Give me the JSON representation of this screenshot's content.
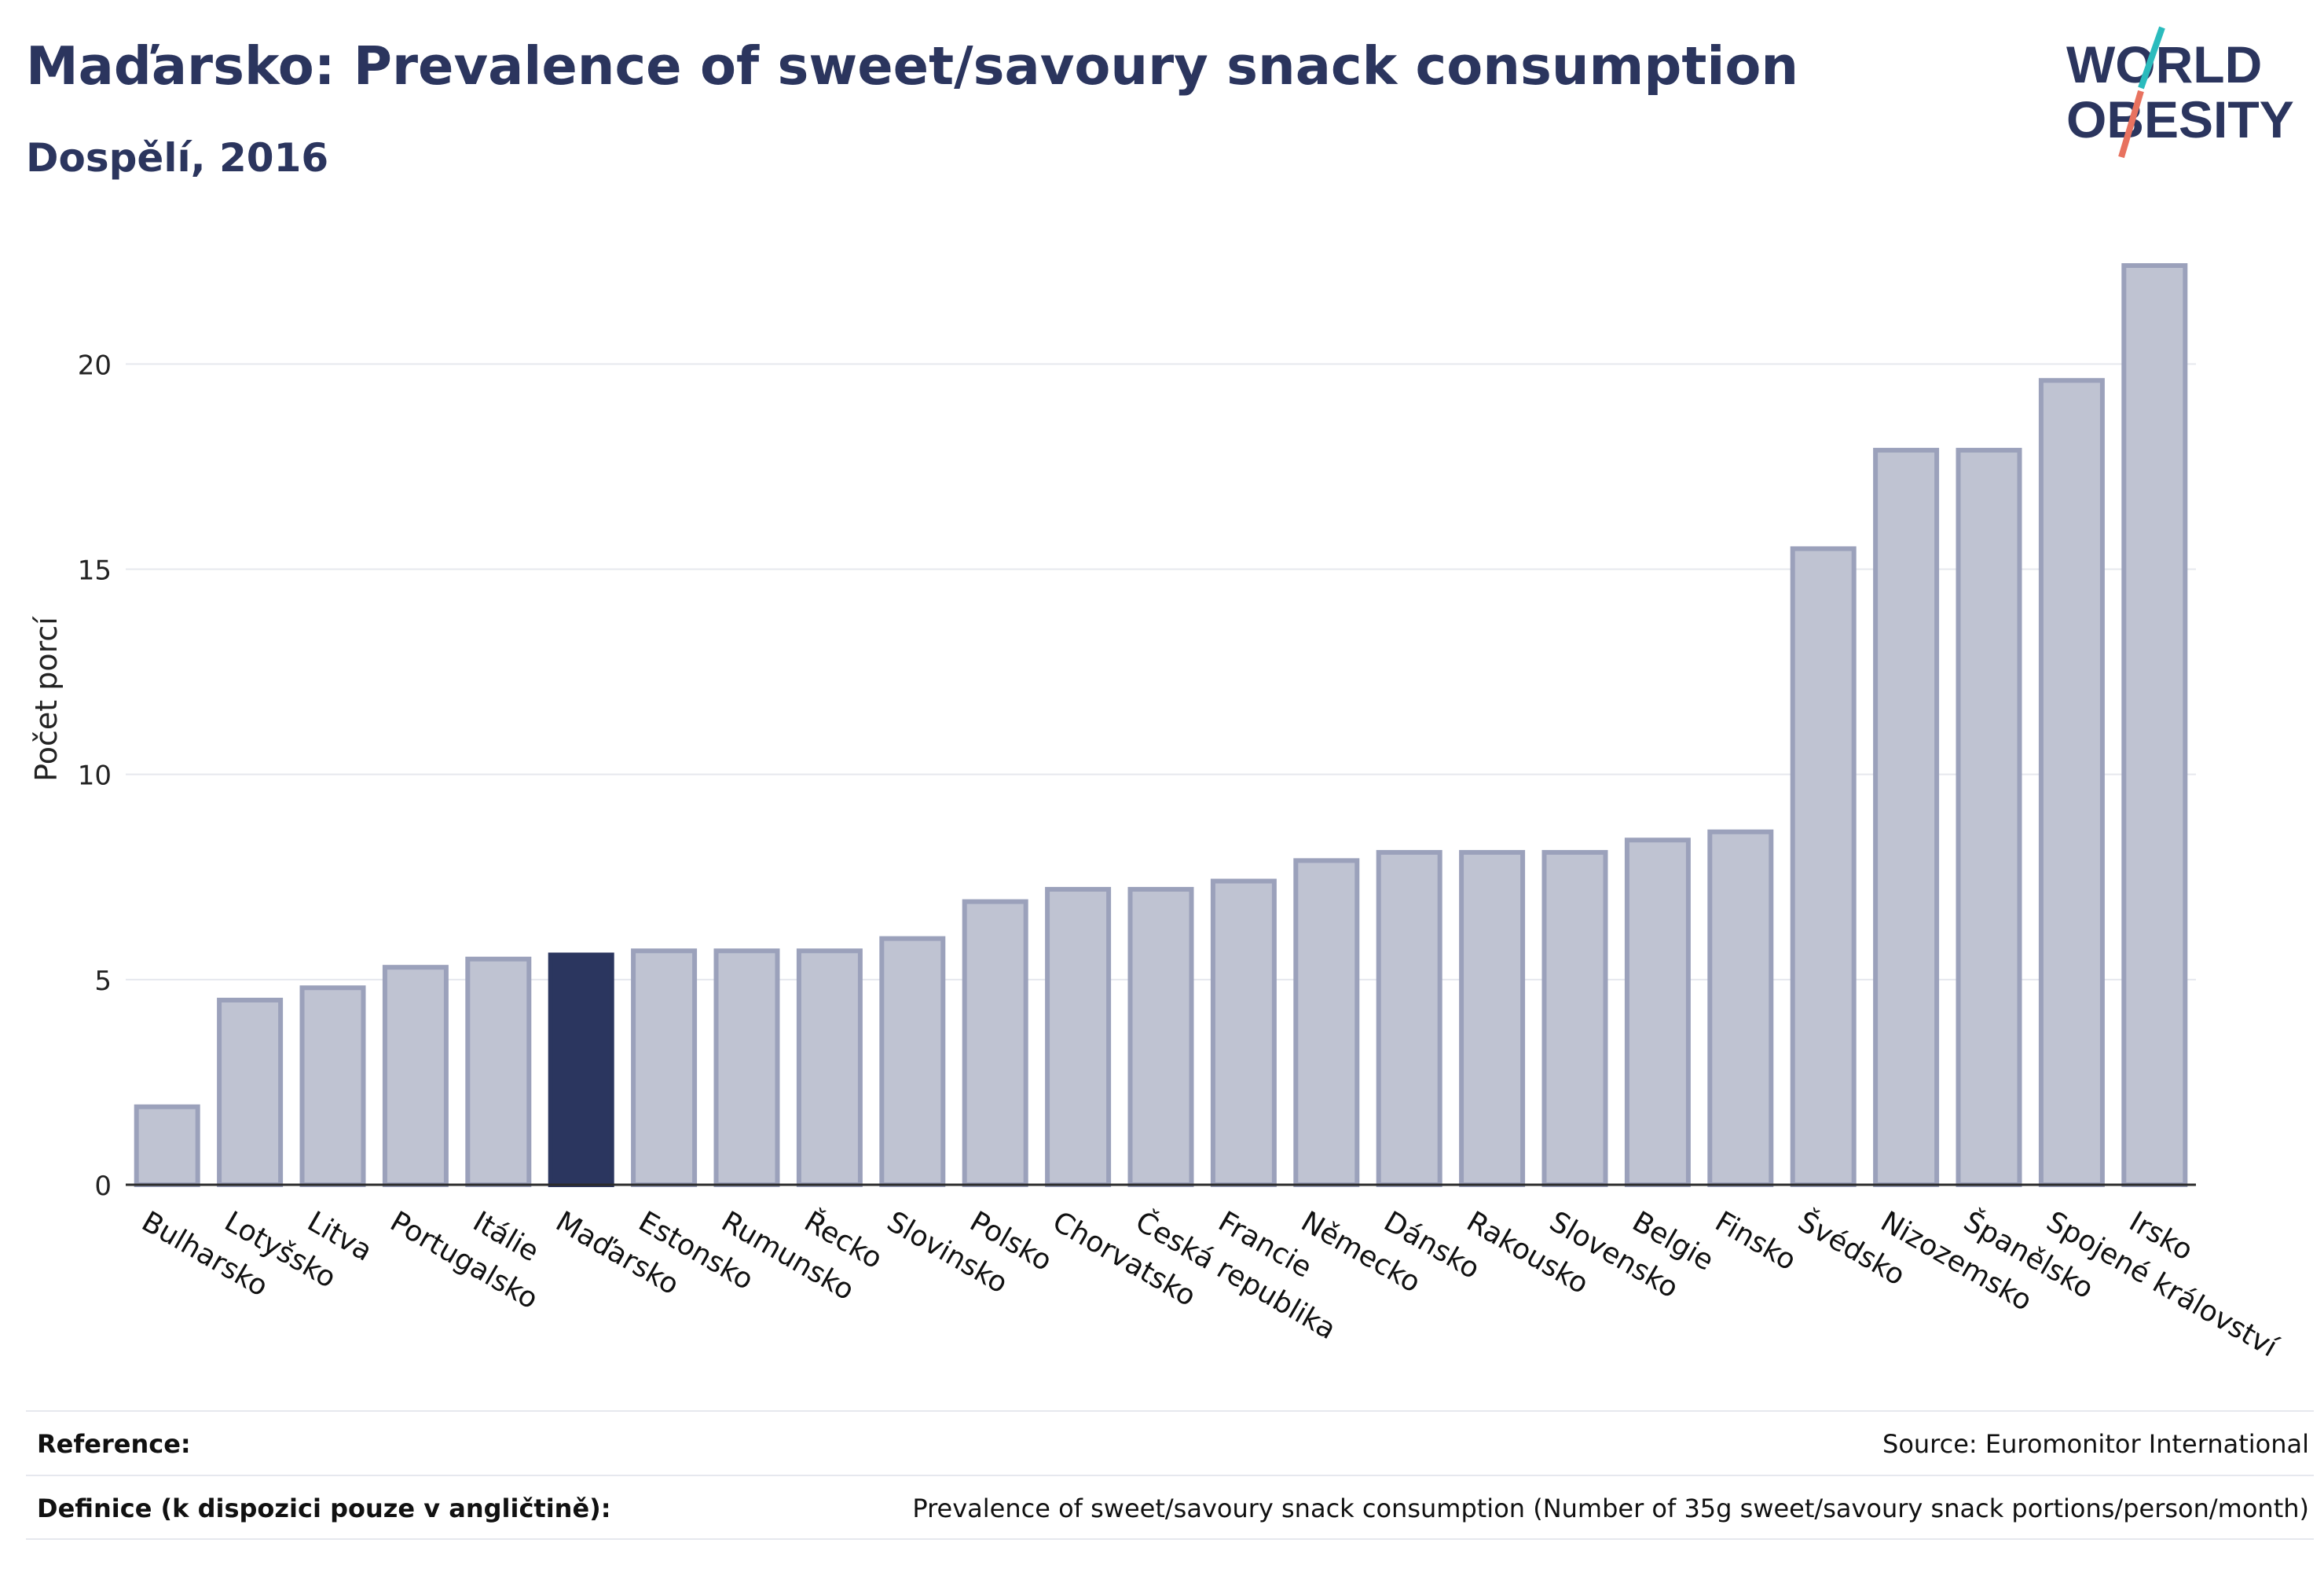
{
  "header": {
    "title": "Maďarsko: Prevalence of sweet/savoury snack consumption",
    "subtitle": "Dospělí, 2016"
  },
  "logo": {
    "line1": "WORLD",
    "line2": "OBESITY"
  },
  "colors": {
    "bar": "#bfc3d2",
    "bar_edge": "#9ba1bb",
    "highlight": "#2b365f",
    "text": "#2b355e"
  },
  "chart_data": {
    "type": "bar",
    "categories": [
      "Bulharsko",
      "Lotyšsko",
      "Litva",
      "Portugalsko",
      "Itálie",
      "Maďarsko",
      "Estonsko",
      "Rumunsko",
      "Řecko",
      "Slovinsko",
      "Polsko",
      "Chorvatsko",
      "Česká republika",
      "Francie",
      "Německo",
      "Dánsko",
      "Rakousko",
      "Slovensko",
      "Belgie",
      "Finsko",
      "Švédsko",
      "Nizozemsko",
      "Španělsko",
      "Spojené království",
      "Irsko"
    ],
    "values": [
      1.9,
      4.5,
      4.8,
      5.3,
      5.5,
      5.6,
      5.7,
      5.7,
      5.7,
      6.0,
      6.9,
      7.2,
      7.2,
      7.4,
      7.9,
      8.1,
      8.1,
      8.1,
      8.4,
      8.6,
      15.5,
      17.9,
      17.9,
      19.6,
      22.4
    ],
    "highlight": "Maďarsko",
    "ylabel": "Počet porcí",
    "ylim": [
      0,
      23
    ],
    "yticks": [
      0,
      5,
      10,
      15,
      20
    ],
    "grid": true
  },
  "footer": {
    "reference_label": "Reference:",
    "reference_value": "Source: Euromonitor International",
    "definition_label": "Definice (k dispozici pouze v angličtině):",
    "definition_value": "Prevalence of sweet/savoury snack consumption (Number of 35g sweet/savoury snack portions/person/month)"
  }
}
